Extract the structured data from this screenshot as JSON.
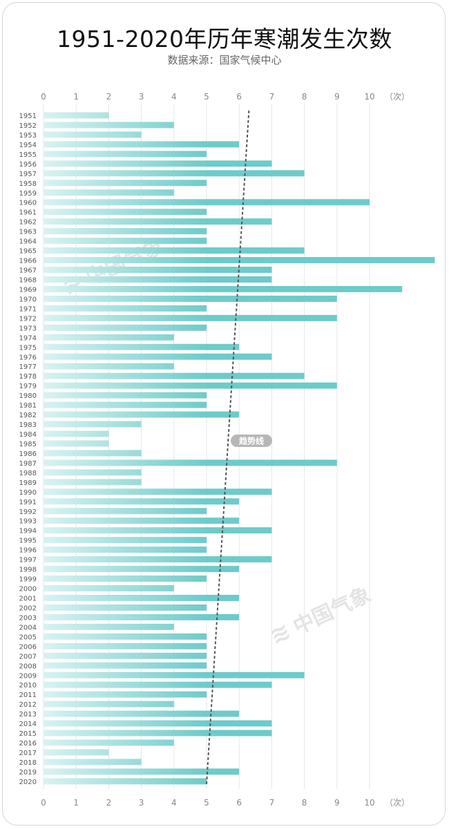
{
  "title": "1951-2020年历年寒潮发生次数",
  "subtitle": "数据来源：国家气候中心",
  "watermark": "中国气象",
  "chart_data": {
    "type": "bar",
    "orientation": "horizontal",
    "categories": [
      "1951",
      "1952",
      "1953",
      "1954",
      "1955",
      "1956",
      "1957",
      "1958",
      "1959",
      "1960",
      "1961",
      "1962",
      "1963",
      "1964",
      "1965",
      "1966",
      "1967",
      "1968",
      "1969",
      "1970",
      "1971",
      "1972",
      "1973",
      "1974",
      "1975",
      "1976",
      "1977",
      "1978",
      "1979",
      "1980",
      "1981",
      "1982",
      "1983",
      "1984",
      "1985",
      "1986",
      "1987",
      "1988",
      "1989",
      "1990",
      "1991",
      "1992",
      "1993",
      "1994",
      "1995",
      "1996",
      "1997",
      "1998",
      "1999",
      "2000",
      "2001",
      "2002",
      "2003",
      "2004",
      "2005",
      "2006",
      "2007",
      "2008",
      "2009",
      "2010",
      "2011",
      "2012",
      "2013",
      "2014",
      "2015",
      "2016",
      "2017",
      "2018",
      "2019",
      "2020"
    ],
    "values": [
      2,
      4,
      3,
      6,
      5,
      7,
      8,
      5,
      4,
      10,
      5,
      7,
      5,
      5,
      8,
      12,
      7,
      7,
      11,
      9,
      5,
      9,
      5,
      4,
      6,
      7,
      4,
      8,
      9,
      5,
      5,
      6,
      3,
      2,
      2,
      3,
      9,
      3,
      3,
      7,
      6,
      5,
      6,
      7,
      5,
      5,
      7,
      6,
      5,
      4,
      6,
      5,
      6,
      4,
      5,
      5,
      5,
      5,
      8,
      7,
      5,
      4,
      6,
      7,
      7,
      4,
      2,
      3,
      6,
      5
    ],
    "xticks": [
      "0",
      "1",
      "2",
      "3",
      "4",
      "5",
      "6",
      "7",
      "8",
      "9",
      "10"
    ],
    "xunit": "（次）",
    "xlim": [
      0,
      12
    ],
    "trend": {
      "label": "趋势线",
      "start": 6.3,
      "end": 5.0
    },
    "grid": true,
    "colors": {
      "bar": "#6dcbca",
      "bar_light": "#d9f2f1",
      "trend": "#555555",
      "grid": "#e6e6e6"
    }
  }
}
